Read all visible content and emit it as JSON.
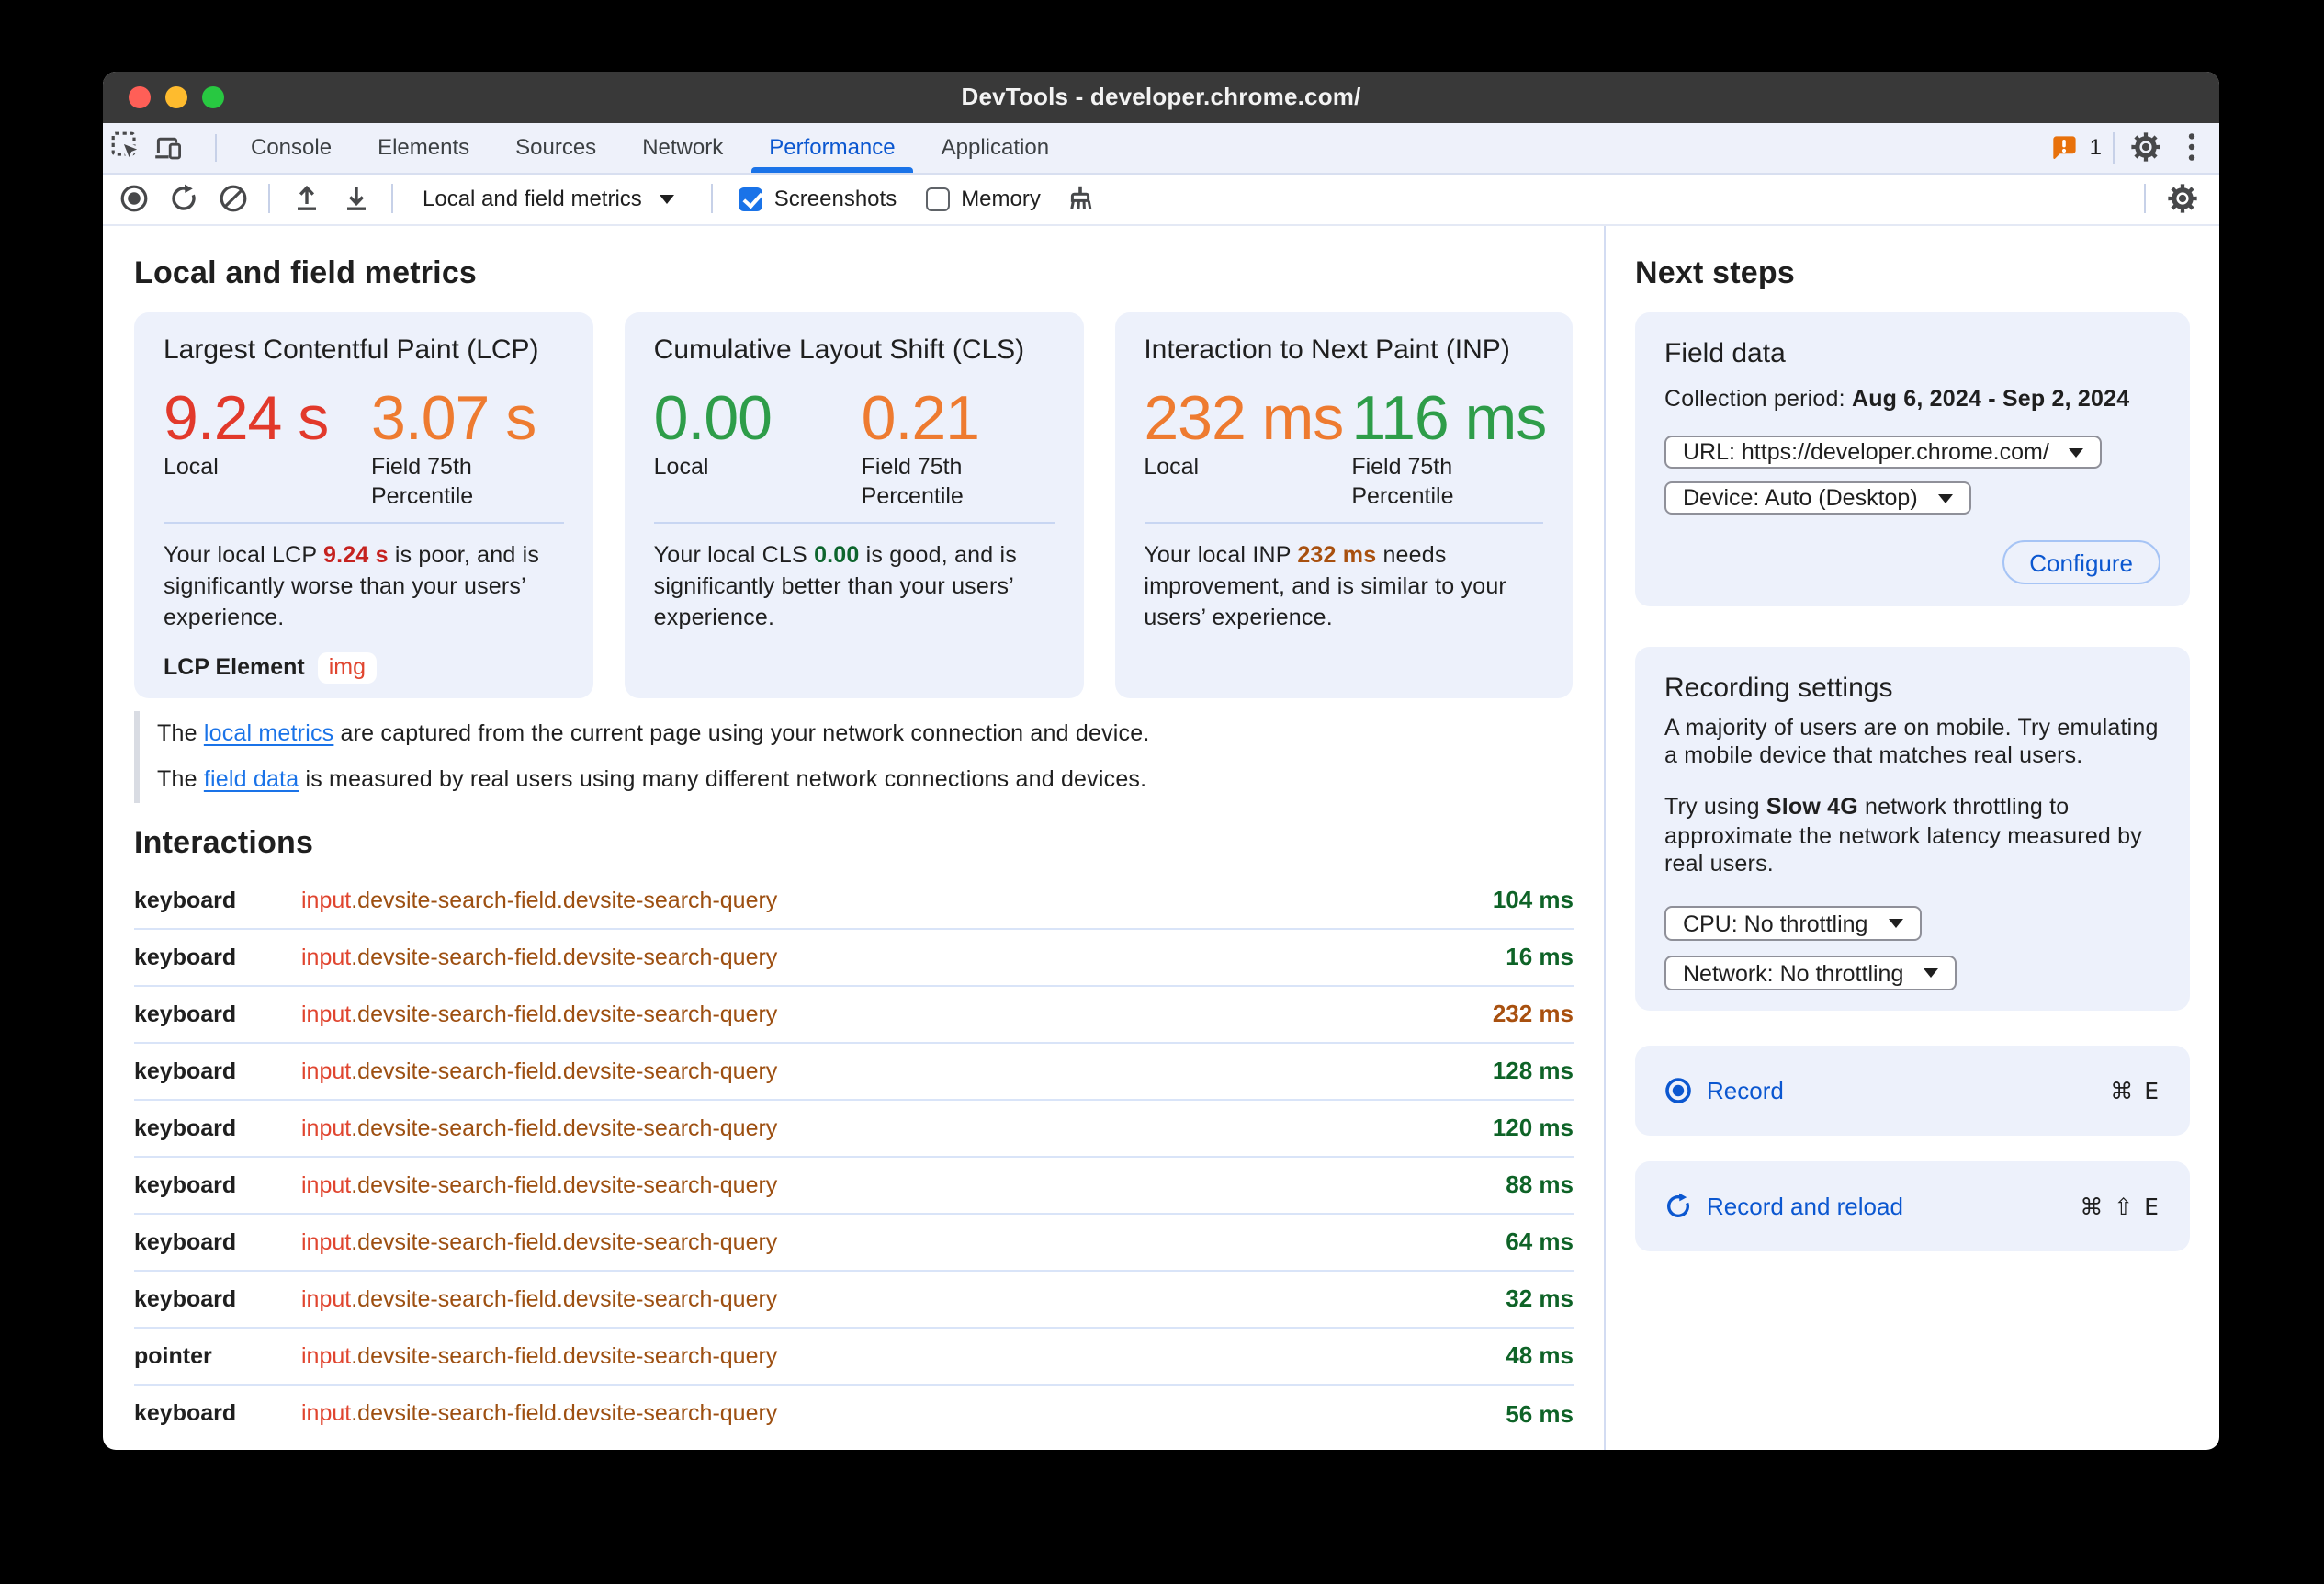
{
  "window": {
    "title": "DevTools - developer.chrome.com/"
  },
  "colors": {
    "accent_blue": "#0b57d0",
    "link_blue": "#1a73e8",
    "poor": "#e2392b",
    "needs_improvement": "#ee7b30",
    "good": "#2e9d49",
    "poor_dark": "#c5221f",
    "good_dark": "#0d652d",
    "improve_dark": "#a8500f",
    "ms_good": "#0e6327",
    "ms_improve": "#a8500f",
    "selector_tag": "#e0452f",
    "selector_class": "#9d4f11",
    "badge_orange": "#e8710a",
    "traffic_red": "#ff5f57",
    "traffic_yellow": "#febb2e",
    "traffic_green": "#28c841"
  },
  "tabbar": {
    "tabs": [
      {
        "label": "Console",
        "active": false
      },
      {
        "label": "Elements",
        "active": false
      },
      {
        "label": "Sources",
        "active": false
      },
      {
        "label": "Network",
        "active": false
      },
      {
        "label": "Performance",
        "active": true
      },
      {
        "label": "Application",
        "active": false
      }
    ],
    "issues_count": "1"
  },
  "toolbar": {
    "view_select": "Local and field metrics",
    "screenshots_label": "Screenshots",
    "screenshots_checked": true,
    "memory_label": "Memory",
    "memory_checked": false
  },
  "main": {
    "heading": "Local and field metrics",
    "cards": [
      {
        "title": "Largest Contentful Paint (LCP)",
        "local_value": "9.24 s",
        "local_rating": "poor",
        "field_value": "3.07 s",
        "field_rating": "needs_improvement",
        "local_label": "Local",
        "field_label": "Field 75th Percentile",
        "desc": [
          {
            "t": "Your local LCP "
          },
          {
            "t": "9.24 s",
            "b": true,
            "c": "poor_dark"
          },
          {
            "t": " is poor, and is significantly worse than your users’ experience."
          }
        ],
        "element_label": "LCP Element",
        "element_chip": "img",
        "element_chip_color": "selector_tag"
      },
      {
        "title": "Cumulative Layout Shift (CLS)",
        "local_value": "0.00",
        "local_rating": "good",
        "field_value": "0.21",
        "field_rating": "needs_improvement",
        "local_label": "Local",
        "field_label": "Field 75th Percentile",
        "desc": [
          {
            "t": "Your local CLS "
          },
          {
            "t": "0.00",
            "b": true,
            "c": "good_dark"
          },
          {
            "t": " is good, and is significantly better than your users’ experience."
          }
        ]
      },
      {
        "title": "Interaction to Next Paint (INP)",
        "local_value": "232 ms",
        "local_rating": "needs_improvement",
        "field_value": "116 ms",
        "field_rating": "good",
        "local_label": "Local",
        "field_label": "Field 75th Percentile",
        "desc": [
          {
            "t": "Your local INP "
          },
          {
            "t": "232 ms",
            "b": true,
            "c": "improve_dark"
          },
          {
            "t": " needs improvement, and is similar to your users’ experience."
          }
        ]
      }
    ],
    "note_lines": [
      [
        {
          "t": "The "
        },
        {
          "t": "local metrics",
          "link": true
        },
        {
          "t": " are captured from the current page using your network connection and device."
        }
      ],
      [
        {
          "t": "The "
        },
        {
          "t": "field data",
          "link": true
        },
        {
          "t": " is measured by real users using many different network connections and devices."
        }
      ]
    ],
    "interactions": {
      "heading": "Interactions",
      "rows": [
        {
          "type": "keyboard",
          "target_tag": "input",
          "target_classes": ".devsite-search-field.devsite-search-query",
          "duration": "104 ms",
          "rating": "ms_good"
        },
        {
          "type": "keyboard",
          "target_tag": "input",
          "target_classes": ".devsite-search-field.devsite-search-query",
          "duration": "16 ms",
          "rating": "ms_good"
        },
        {
          "type": "keyboard",
          "target_tag": "input",
          "target_classes": ".devsite-search-field.devsite-search-query",
          "duration": "232 ms",
          "rating": "ms_improve"
        },
        {
          "type": "keyboard",
          "target_tag": "input",
          "target_classes": ".devsite-search-field.devsite-search-query",
          "duration": "128 ms",
          "rating": "ms_good"
        },
        {
          "type": "keyboard",
          "target_tag": "input",
          "target_classes": ".devsite-search-field.devsite-search-query",
          "duration": "120 ms",
          "rating": "ms_good"
        },
        {
          "type": "keyboard",
          "target_tag": "input",
          "target_classes": ".devsite-search-field.devsite-search-query",
          "duration": "88 ms",
          "rating": "ms_good"
        },
        {
          "type": "keyboard",
          "target_tag": "input",
          "target_classes": ".devsite-search-field.devsite-search-query",
          "duration": "64 ms",
          "rating": "ms_good"
        },
        {
          "type": "keyboard",
          "target_tag": "input",
          "target_classes": ".devsite-search-field.devsite-search-query",
          "duration": "32 ms",
          "rating": "ms_good"
        },
        {
          "type": "pointer",
          "target_tag": "input",
          "target_classes": ".devsite-search-field.devsite-search-query",
          "duration": "48 ms",
          "rating": "ms_good"
        },
        {
          "type": "keyboard",
          "target_tag": "input",
          "target_classes": ".devsite-search-field.devsite-search-query",
          "duration": "56 ms",
          "rating": "ms_good"
        }
      ]
    }
  },
  "sidebar": {
    "heading": "Next steps",
    "field_data": {
      "title": "Field data",
      "collection_label": "Collection period: ",
      "collection_value": "Aug 6, 2024 - Sep 2, 2024",
      "url_select": "URL: https://developer.chrome.com/",
      "device_select": "Device: Auto (Desktop)",
      "configure_label": "Configure"
    },
    "recording_settings": {
      "title": "Recording settings",
      "para1": "A majority of users are on mobile. Try emulating a mobile device that matches real users.",
      "para2": [
        {
          "t": "Try using "
        },
        {
          "t": "Slow 4G",
          "b": true
        },
        {
          "t": " network throttling to approximate the network latency measured by real users."
        }
      ],
      "cpu_select": "CPU: No throttling",
      "network_select": "Network: No throttling"
    },
    "record": {
      "label": "Record",
      "shortcut": "⌘ E"
    },
    "record_reload": {
      "label": "Record and reload",
      "shortcut": "⌘ ⇧ E"
    }
  }
}
